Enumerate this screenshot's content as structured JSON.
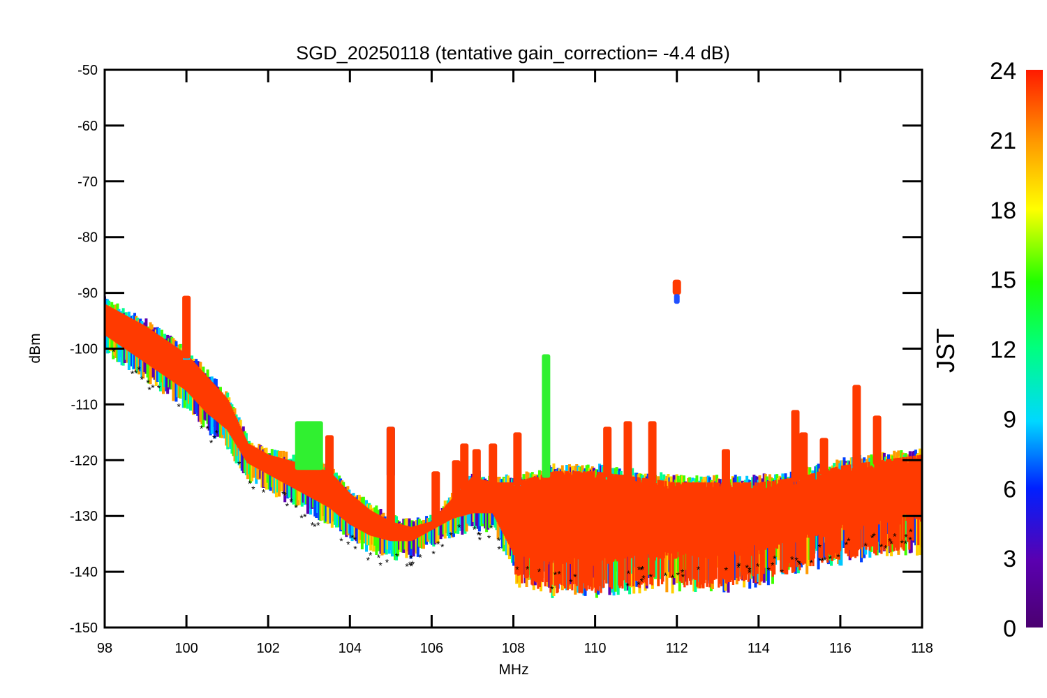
{
  "chart_data": {
    "type": "scatter",
    "title": "SGD_20250118 (tentative gain_correction= -4.4 dB)",
    "xlabel": "MHz",
    "ylabel": "dBm",
    "xlim": [
      98,
      118
    ],
    "ylim": [
      -150,
      -50
    ],
    "xticks": [
      98,
      100,
      102,
      104,
      106,
      108,
      110,
      112,
      114,
      116,
      118
    ],
    "yticks": [
      -50,
      -60,
      -70,
      -80,
      -90,
      -100,
      -110,
      -120,
      -130,
      -140,
      -150
    ],
    "grid": false,
    "colorbar": {
      "label": "JST",
      "range": [
        0,
        24
      ],
      "ticks": [
        0,
        3,
        6,
        9,
        12,
        15,
        18,
        21,
        24
      ],
      "colormap": "rainbow",
      "dominant_color": "#ff3a00"
    },
    "baseline": {
      "x": [
        98,
        99,
        100,
        100.5,
        101,
        101.5,
        102,
        102.5,
        103,
        103.5,
        104,
        104.5,
        105,
        105.5,
        106,
        106.5,
        107,
        107.5,
        108,
        109,
        110,
        111,
        112,
        113,
        114,
        115,
        116,
        117,
        118
      ],
      "y_top": [
        -92,
        -96,
        -101,
        -105,
        -109,
        -117,
        -119,
        -120,
        -121,
        -122,
        -126,
        -129,
        -131,
        -132,
        -131,
        -127,
        -123,
        -124,
        -124,
        -122,
        -122,
        -123,
        -124,
        -124,
        -124,
        -123,
        -121,
        -120,
        -119
      ],
      "y_bottom": [
        -99,
        -104,
        -109,
        -113,
        -116,
        -122,
        -124,
        -126,
        -128,
        -130,
        -133,
        -135,
        -136,
        -136,
        -134,
        -132,
        -131,
        -131,
        -138,
        -140,
        -140,
        -139,
        -139,
        -139,
        -138,
        -136,
        -134,
        -133,
        -132
      ]
    },
    "peaks": [
      {
        "x": 100.0,
        "y": -90.5
      },
      {
        "x": 103.0,
        "y": -113
      },
      {
        "x": 103.5,
        "y": -115.5
      },
      {
        "x": 105.0,
        "y": -114
      },
      {
        "x": 106.1,
        "y": -122
      },
      {
        "x": 106.6,
        "y": -120
      },
      {
        "x": 106.8,
        "y": -117
      },
      {
        "x": 107.1,
        "y": -118
      },
      {
        "x": 107.5,
        "y": -117
      },
      {
        "x": 108.1,
        "y": -115
      },
      {
        "x": 108.8,
        "y": -101
      },
      {
        "x": 110.3,
        "y": -114
      },
      {
        "x": 110.8,
        "y": -113
      },
      {
        "x": 111.4,
        "y": -113
      },
      {
        "x": 112.0,
        "y": -88
      },
      {
        "x": 113.2,
        "y": -118
      },
      {
        "x": 114.9,
        "y": -111
      },
      {
        "x": 115.1,
        "y": -115
      },
      {
        "x": 115.6,
        "y": -116
      },
      {
        "x": 116.4,
        "y": -106.5
      },
      {
        "x": 116.9,
        "y": -112
      }
    ]
  }
}
